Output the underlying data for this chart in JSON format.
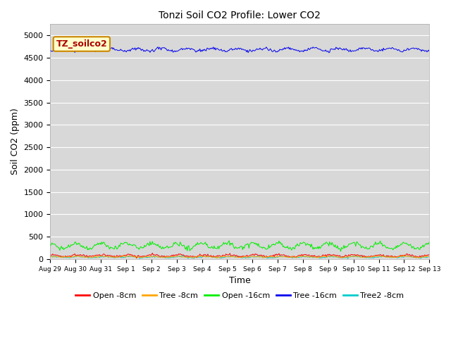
{
  "title": "Tonzi Soil CO2 Profile: Lower CO2",
  "ylabel": "Soil CO2 (ppm)",
  "xlabel": "Time",
  "legend_title": "TZ_soilco2",
  "ylim": [
    0,
    5250
  ],
  "yticks": [
    0,
    500,
    1000,
    1500,
    2000,
    2500,
    3000,
    3500,
    4000,
    4500,
    5000
  ],
  "bg_color": "#d8d8d8",
  "fig_bg": "#ffffff",
  "lines": {
    "open_8cm": {
      "label": "Open -8cm",
      "color": "#ff0000",
      "base": 75,
      "amplitude": 18,
      "noise_scale": 12
    },
    "tree_8cm": {
      "label": "Tree -8cm",
      "color": "#ffa500",
      "base": 50,
      "amplitude": 10,
      "noise_scale": 8
    },
    "open_16cm": {
      "label": "Open -16cm",
      "color": "#00ee00",
      "base": 295,
      "amplitude": 55,
      "noise_scale": 25
    },
    "tree_16cm": {
      "label": "Tree -16cm",
      "color": "#0000ee",
      "base": 4680,
      "amplitude": 30,
      "noise_scale": 15
    },
    "tree2_8cm": {
      "label": "Tree2 -8cm",
      "color": "#00cccc",
      "base": 45,
      "amplitude": 12,
      "noise_scale": 8
    }
  },
  "x_tick_labels": [
    "Aug 29",
    "Aug 30",
    "Aug 31",
    "Sep 1",
    "Sep 2",
    "Sep 3",
    "Sep 4",
    "Sep 5",
    "Sep 6",
    "Sep 7",
    "Sep 8",
    "Sep 9",
    "Sep 10",
    "Sep 11",
    "Sep 12",
    "Sep 13"
  ],
  "n_points": 480,
  "n_days": 15,
  "legend_title_color": "#aa0000",
  "legend_title_bg": "#ffffcc",
  "legend_title_edge": "#cc8800",
  "title_fontsize": 10,
  "axis_label_fontsize": 9,
  "tick_fontsize": 8,
  "legend_fontsize": 8
}
